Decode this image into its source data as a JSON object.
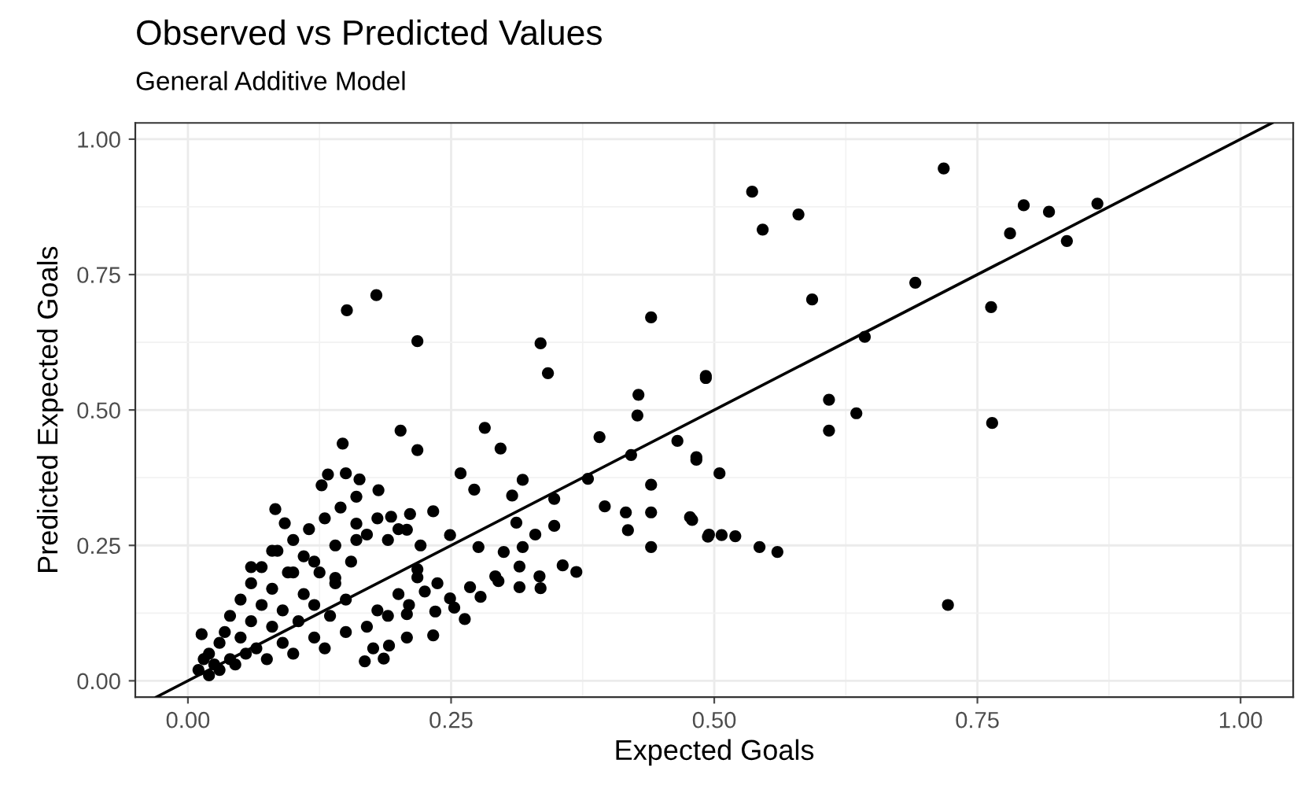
{
  "chart_data": {
    "type": "scatter",
    "title": "Observed vs Predicted Values",
    "subtitle": "General Additive Model",
    "xlabel": "Expected Goals",
    "ylabel": "Predicted Expected Goals",
    "xlim": [
      -0.05,
      1.05
    ],
    "ylim": [
      -0.03,
      1.03
    ],
    "xticks": [
      {
        "value": 0,
        "label": "0.00"
      },
      0.25,
      {
        "value": 0.5,
        "label": "0.50"
      },
      0.75,
      {
        "value": 1,
        "label": "1.00"
      }
    ],
    "yticks": [
      {
        "value": 0,
        "label": "0.00"
      },
      0.25,
      {
        "value": 0.5,
        "label": "0.50"
      },
      0.75,
      {
        "value": 1,
        "label": "1.00"
      }
    ],
    "grid": true,
    "legend": false,
    "series": [
      {
        "color": "#000000",
        "marker": "circle",
        "x": [
          0.536,
          0.546,
          0.58,
          0.593,
          0.718,
          0.781,
          0.794,
          0.818,
          0.835,
          0.864,
          0.691,
          0.763,
          0.764,
          0.722,
          0.643,
          0.609,
          0.609,
          0.635,
          0.492,
          0.483,
          0.505,
          0.479,
          0.494,
          0.507,
          0.52,
          0.543,
          0.56,
          0.151,
          0.179,
          0.218,
          0.335,
          0.342,
          0.44,
          0.428,
          0.427,
          0.492,
          0.391,
          0.421,
          0.465,
          0.483,
          0.44,
          0.38,
          0.396,
          0.416,
          0.418,
          0.44,
          0.44,
          0.477,
          0.495,
          0.202,
          0.218,
          0.282,
          0.297,
          0.259,
          0.318,
          0.272,
          0.308,
          0.348,
          0.147,
          0.133,
          0.127,
          0.15,
          0.163,
          0.181,
          0.083,
          0.092,
          0.312,
          0.348,
          0.33,
          0.276,
          0.318,
          0.3,
          0.315,
          0.356,
          0.369,
          0.334,
          0.335,
          0.315,
          0.292,
          0.295,
          0.268,
          0.278,
          0.253,
          0.263,
          0.233,
          0.208,
          0.237,
          0.225,
          0.218,
          0.249,
          0.233,
          0.211,
          0.193,
          0.208,
          0.221,
          0.218,
          0.249,
          0.235,
          0.208,
          0.191,
          0.168,
          0.186,
          0.176,
          0.013,
          0.01,
          0.015,
          0.02,
          0.02,
          0.025,
          0.03,
          0.03,
          0.035,
          0.04,
          0.04,
          0.045,
          0.05,
          0.05,
          0.055,
          0.06,
          0.06,
          0.065,
          0.07,
          0.07,
          0.075,
          0.08,
          0.08,
          0.085,
          0.09,
          0.09,
          0.095,
          0.1,
          0.1,
          0.105,
          0.11,
          0.11,
          0.115,
          0.12,
          0.12,
          0.125,
          0.13,
          0.13,
          0.135,
          0.14,
          0.14,
          0.145,
          0.15,
          0.15,
          0.155,
          0.16,
          0.16,
          0.17,
          0.17,
          0.18,
          0.18,
          0.19,
          0.19,
          0.2,
          0.2,
          0.21,
          0.12,
          0.1,
          0.08,
          0.06,
          0.14,
          0.16
        ],
        "values": [
          0.903,
          0.833,
          0.861,
          0.704,
          0.946,
          0.826,
          0.878,
          0.866,
          0.812,
          0.881,
          0.735,
          0.69,
          0.476,
          0.14,
          0.635,
          0.519,
          0.462,
          0.494,
          0.559,
          0.408,
          0.383,
          0.297,
          0.266,
          0.269,
          0.267,
          0.247,
          0.238,
          0.684,
          0.712,
          0.627,
          0.623,
          0.568,
          0.671,
          0.528,
          0.49,
          0.563,
          0.45,
          0.417,
          0.443,
          0.413,
          0.362,
          0.373,
          0.322,
          0.311,
          0.278,
          0.311,
          0.247,
          0.302,
          0.27,
          0.462,
          0.426,
          0.467,
          0.429,
          0.383,
          0.371,
          0.353,
          0.342,
          0.336,
          0.438,
          0.381,
          0.361,
          0.383,
          0.372,
          0.352,
          0.317,
          0.291,
          0.292,
          0.286,
          0.27,
          0.247,
          0.247,
          0.238,
          0.211,
          0.213,
          0.201,
          0.193,
          0.171,
          0.173,
          0.193,
          0.184,
          0.173,
          0.155,
          0.135,
          0.114,
          0.084,
          0.08,
          0.18,
          0.165,
          0.191,
          0.269,
          0.313,
          0.308,
          0.303,
          0.279,
          0.25,
          0.206,
          0.152,
          0.128,
          0.123,
          0.065,
          0.036,
          0.041,
          0.06,
          0.086,
          0.02,
          0.04,
          0.01,
          0.05,
          0.03,
          0.07,
          0.02,
          0.09,
          0.04,
          0.12,
          0.03,
          0.08,
          0.15,
          0.05,
          0.11,
          0.18,
          0.06,
          0.14,
          0.21,
          0.04,
          0.1,
          0.17,
          0.24,
          0.07,
          0.13,
          0.2,
          0.26,
          0.05,
          0.11,
          0.16,
          0.23,
          0.28,
          0.08,
          0.14,
          0.2,
          0.3,
          0.06,
          0.12,
          0.19,
          0.25,
          0.32,
          0.09,
          0.15,
          0.22,
          0.29,
          0.34,
          0.1,
          0.27,
          0.13,
          0.3,
          0.12,
          0.26,
          0.16,
          0.28,
          0.14,
          0.22,
          0.2,
          0.24,
          0.21,
          0.18,
          0.26
        ]
      },
      {
        "type": "line",
        "marker": "none",
        "color": "#000000",
        "x": [
          -0.03,
          1.03
        ],
        "values": [
          -0.03,
          1.03
        ]
      }
    ]
  }
}
